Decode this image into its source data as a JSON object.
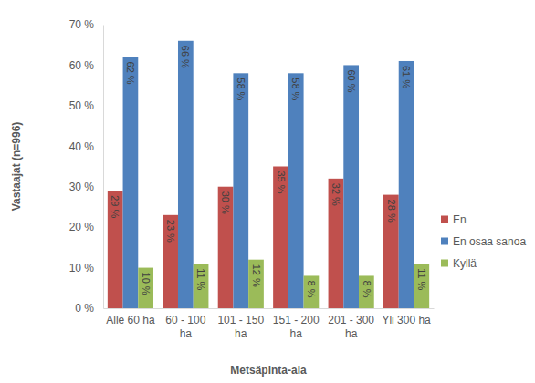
{
  "chart_data": {
    "type": "bar",
    "x_label": "Metsäpinta-ala",
    "y_label": "Vastaajat (n=996)",
    "categories": [
      "Alle 60 ha",
      "60 - 100 ha",
      "101 - 150 ha",
      "151 - 200 ha",
      "201 - 300 ha",
      "Yli 300 ha"
    ],
    "series": [
      {
        "name": "En",
        "color": "#c0504d",
        "values": [
          29,
          23,
          30,
          35,
          32,
          28
        ],
        "value_labels": [
          "29 %",
          "23 %",
          "30 %",
          "35 %",
          "32 %",
          "28 %"
        ]
      },
      {
        "name": "En osaa sanoa",
        "color": "#4f81bd",
        "values": [
          62,
          66,
          58,
          58,
          60,
          61
        ],
        "value_labels": [
          "62 %",
          "66 %",
          "58 %",
          "58 %",
          "60 %",
          "61 %"
        ]
      },
      {
        "name": "Kyllä",
        "color": "#9bbb59",
        "values": [
          10,
          11,
          12,
          8,
          8,
          11
        ],
        "value_labels": [
          "10 %",
          "11 %",
          "12 %",
          "8 %",
          "8 %",
          "11 %"
        ]
      }
    ],
    "ylim": [
      0,
      70
    ],
    "yticks": [
      {
        "value": 0,
        "label": "0 %"
      },
      {
        "value": 10,
        "label": "10 %"
      },
      {
        "value": 20,
        "label": "20 %"
      },
      {
        "value": 30,
        "label": "30 %"
      },
      {
        "value": 40,
        "label": "40 %"
      },
      {
        "value": 50,
        "label": "50 %"
      },
      {
        "value": 60,
        "label": "60 %"
      },
      {
        "value": 70,
        "label": "70 %"
      }
    ],
    "grid": false,
    "legend": "right",
    "data_labels": true
  }
}
